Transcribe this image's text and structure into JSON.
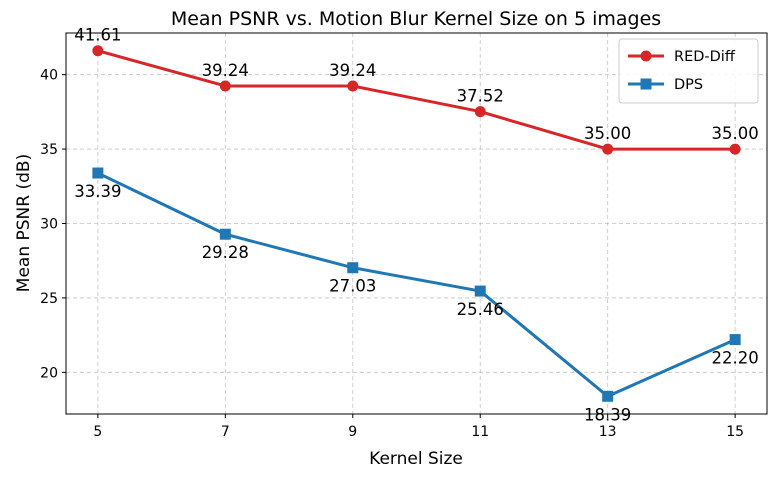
{
  "chart_data": {
    "type": "line",
    "title": "Mean PSNR vs. Motion Blur Kernel Size on 5 images",
    "xlabel": "Kernel Size",
    "ylabel": "Mean PSNR (dB)",
    "x": [
      5,
      7,
      9,
      11,
      13,
      15
    ],
    "x_ticks": [
      "5",
      "7",
      "9",
      "11",
      "13",
      "15"
    ],
    "y_ticks": [
      "20",
      "25",
      "30",
      "35",
      "40"
    ],
    "xlim": [
      4.5,
      15.5
    ],
    "ylim": [
      17.2,
      42.8
    ],
    "grid": true,
    "legend_position": "top-right",
    "series": [
      {
        "name": "RED-Diff",
        "color": "#d62728",
        "marker": "circle",
        "values": [
          41.61,
          39.24,
          39.24,
          37.52,
          35.0,
          35.0
        ],
        "labels": [
          "41.61",
          "39.24",
          "39.24",
          "37.52",
          "35.00",
          "35.00"
        ],
        "label_placement": "above"
      },
      {
        "name": "DPS",
        "color": "#1f77b4",
        "marker": "square",
        "values": [
          33.39,
          29.28,
          27.03,
          25.46,
          18.39,
          22.2
        ],
        "labels": [
          "33.39",
          "29.28",
          "27.03",
          "25.46",
          "18.39",
          "22.20"
        ],
        "label_placement": "below"
      }
    ]
  }
}
